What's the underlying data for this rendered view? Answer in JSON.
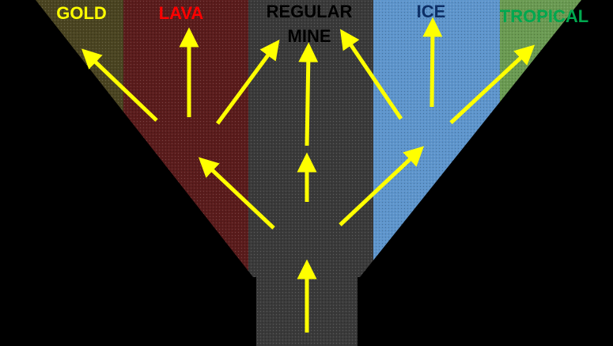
{
  "zones": [
    {
      "key": "gold",
      "label": "GOLD",
      "label_color": "#ffff00",
      "fill_color": "#4a4421"
    },
    {
      "key": "lava",
      "label": "LAVA",
      "label_color": "#ff0000",
      "fill_color": "#5a1c1c"
    },
    {
      "key": "regular",
      "label_lines": [
        "REGULAR",
        "MINE"
      ],
      "label_color": "#000000",
      "fill_color": "#3a3a3a"
    },
    {
      "key": "ice",
      "label": "ICE",
      "label_color": "#0d2f66",
      "fill_color": "#5e95cc"
    },
    {
      "key": "tropical",
      "label": "TROPICAL",
      "label_color": "#00a84f",
      "fill_color": "#6a9a52"
    }
  ],
  "colors": {
    "arrow": "#ffff00",
    "background": "#000000",
    "shaft": "#3a3a3a"
  },
  "icons": {
    "arrow": "arrow-up-icon"
  }
}
